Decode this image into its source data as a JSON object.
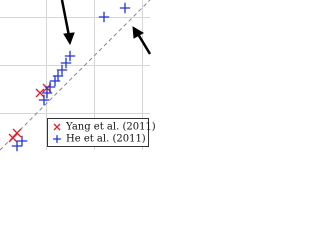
{
  "chart_data": {
    "type": "scatter",
    "xlim": [
      0,
      150
    ],
    "ylim": [
      0,
      150
    ],
    "series": [
      {
        "name": "Yang et al. (2011)",
        "color": "#e0202a",
        "marker": "x",
        "x": [
          13,
          17,
          40,
          47
        ],
        "values": [
          12,
          17,
          57,
          62
        ]
      },
      {
        "name": "He et al. (2011)",
        "color": "#1f35d6",
        "marker": "plus",
        "x": [
          104,
          125,
          70,
          66,
          62,
          58,
          55,
          50,
          47,
          44,
          22,
          17
        ],
        "values": [
          133,
          142,
          94,
          87,
          80,
          74,
          69,
          63,
          57,
          50,
          9,
          4
        ]
      }
    ]
  }
}
